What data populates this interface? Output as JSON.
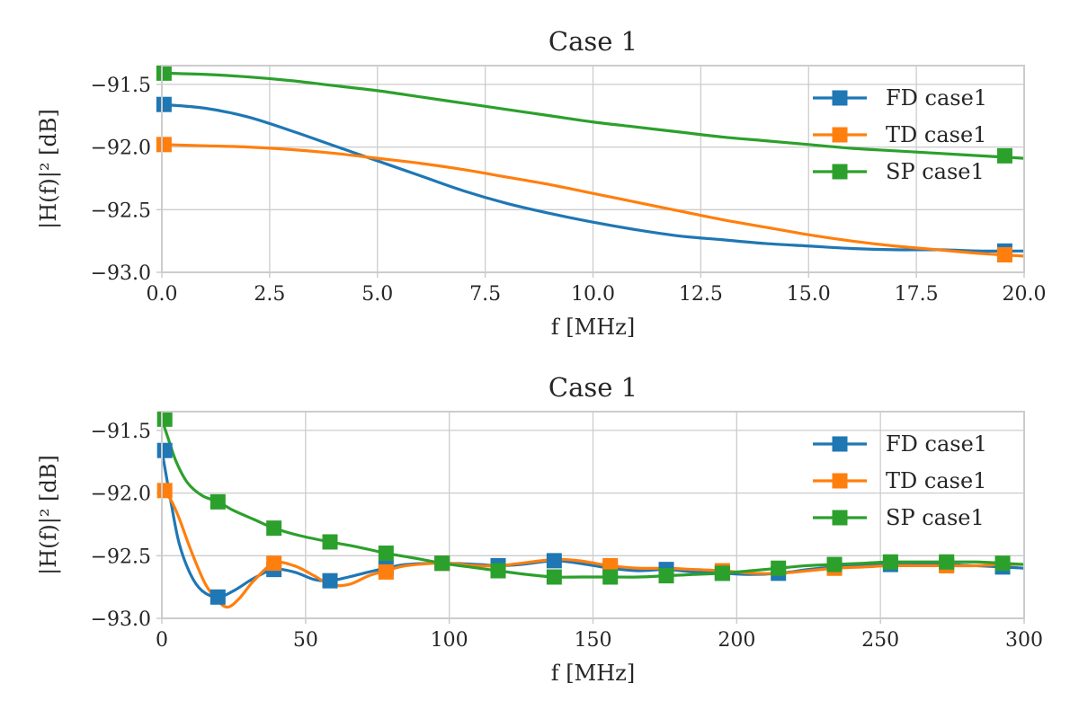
{
  "chart_data": [
    {
      "type": "line",
      "title": "Case 1",
      "xlabel": "f [MHz]",
      "ylabel": "|H(f)|² [dB]",
      "xlim": [
        0,
        20
      ],
      "ylim": [
        -93.0,
        -91.35
      ],
      "xticks": [
        "0.0",
        "2.5",
        "5.0",
        "7.5",
        "10.0",
        "12.5",
        "15.0",
        "17.5",
        "20.0"
      ],
      "xtick_values": [
        0,
        2.5,
        5,
        7.5,
        10,
        12.5,
        15,
        17.5,
        20
      ],
      "yticks": [
        "−93.0",
        "−92.5",
        "−92.0",
        "−91.5"
      ],
      "ytick_values": [
        -93.0,
        -92.5,
        -92.0,
        -91.5
      ],
      "grid": true,
      "legend_position": "top-right",
      "series": [
        {
          "name": "FD case1",
          "color": "#1f77b4",
          "x": [
            0,
            1,
            2,
            3,
            4,
            5,
            6,
            7,
            8,
            9,
            10,
            11,
            12,
            13,
            14,
            15,
            16,
            17,
            18,
            19,
            20
          ],
          "values": [
            -91.66,
            -91.69,
            -91.76,
            -91.87,
            -91.99,
            -92.11,
            -92.23,
            -92.35,
            -92.45,
            -92.53,
            -92.6,
            -92.66,
            -92.71,
            -92.74,
            -92.77,
            -92.79,
            -92.81,
            -92.82,
            -92.82,
            -92.83,
            -92.83
          ],
          "markers": [
            {
              "x": 0.05,
              "y": -91.66
            },
            {
              "x": 19.55,
              "y": -92.83
            }
          ]
        },
        {
          "name": "TD case1",
          "color": "#ff7f0e",
          "x": [
            0,
            1,
            2,
            3,
            4,
            5,
            6,
            7,
            8,
            9,
            10,
            11,
            12,
            13,
            14,
            15,
            16,
            17,
            18,
            19,
            20
          ],
          "values": [
            -91.98,
            -91.99,
            -92.0,
            -92.02,
            -92.05,
            -92.09,
            -92.13,
            -92.18,
            -92.24,
            -92.3,
            -92.37,
            -92.44,
            -92.51,
            -92.58,
            -92.64,
            -92.7,
            -92.75,
            -92.79,
            -92.82,
            -92.85,
            -92.87
          ],
          "markers": [
            {
              "x": 0.05,
              "y": -91.98
            },
            {
              "x": 19.55,
              "y": -92.86
            }
          ]
        },
        {
          "name": "SP case1",
          "color": "#2ca02c",
          "x": [
            0,
            1,
            2,
            3,
            4,
            5,
            6,
            7,
            8,
            9,
            10,
            11,
            12,
            13,
            14,
            15,
            16,
            17,
            18,
            19,
            20
          ],
          "values": [
            -91.41,
            -91.42,
            -91.44,
            -91.47,
            -91.51,
            -91.55,
            -91.6,
            -91.65,
            -91.7,
            -91.75,
            -91.8,
            -91.84,
            -91.88,
            -91.92,
            -91.95,
            -91.98,
            -92.01,
            -92.03,
            -92.05,
            -92.07,
            -92.09
          ],
          "markers": [
            {
              "x": 0.05,
              "y": -91.41
            },
            {
              "x": 19.55,
              "y": -92.07
            }
          ]
        }
      ]
    },
    {
      "type": "line",
      "title": "Case 1",
      "xlabel": "f [MHz]",
      "ylabel": "|H(f)|² [dB]",
      "xlim": [
        0,
        300
      ],
      "ylim": [
        -93.0,
        -91.35
      ],
      "xticks": [
        "0",
        "50",
        "100",
        "150",
        "200",
        "250",
        "300"
      ],
      "xtick_values": [
        0,
        50,
        100,
        150,
        200,
        250,
        300
      ],
      "yticks": [
        "−93.0",
        "−92.5",
        "−92.0",
        "−91.5"
      ],
      "ytick_values": [
        -93.0,
        -92.5,
        -92.0,
        -91.5
      ],
      "grid": true,
      "legend_position": "top-right",
      "series": [
        {
          "name": "FD case1",
          "color": "#1f77b4",
          "x": [
            0,
            3,
            6,
            10,
            14,
            19.5,
            25,
            32,
            39,
            46,
            53,
            58.5,
            65,
            72,
            78,
            85,
            97.5,
            110,
            117,
            125,
            136.5,
            145,
            156,
            166,
            175.5,
            185,
            195,
            205,
            215,
            225,
            234,
            244,
            254,
            264,
            273,
            283,
            293,
            300
          ],
          "values": [
            -91.66,
            -92.05,
            -92.4,
            -92.65,
            -92.78,
            -92.83,
            -92.78,
            -92.68,
            -92.61,
            -92.63,
            -92.69,
            -92.7,
            -92.67,
            -92.63,
            -92.6,
            -92.57,
            -92.56,
            -92.57,
            -92.58,
            -92.57,
            -92.54,
            -92.56,
            -92.6,
            -92.62,
            -92.61,
            -92.63,
            -92.64,
            -92.65,
            -92.64,
            -92.61,
            -92.59,
            -92.58,
            -92.57,
            -92.57,
            -92.57,
            -92.58,
            -92.59,
            -92.6
          ],
          "markers": [
            {
              "x": 1,
              "y": -91.66
            },
            {
              "x": 19.5,
              "y": -92.83
            },
            {
              "x": 39,
              "y": -92.61
            },
            {
              "x": 58.5,
              "y": -92.7
            },
            {
              "x": 78,
              "y": -92.6
            },
            {
              "x": 97.5,
              "y": -92.56
            },
            {
              "x": 117,
              "y": -92.58
            },
            {
              "x": 136.5,
              "y": -92.54
            },
            {
              "x": 156,
              "y": -92.6
            },
            {
              "x": 175.5,
              "y": -92.61
            },
            {
              "x": 195,
              "y": -92.64
            },
            {
              "x": 214.5,
              "y": -92.64
            },
            {
              "x": 234,
              "y": -92.59
            },
            {
              "x": 253.5,
              "y": -92.57
            },
            {
              "x": 273,
              "y": -92.57
            },
            {
              "x": 292.5,
              "y": -92.59
            }
          ]
        },
        {
          "name": "TD case1",
          "color": "#ff7f0e",
          "x": [
            0,
            3,
            6,
            10,
            15,
            19.5,
            23,
            27,
            32,
            39,
            46,
            53,
            58.5,
            65,
            72,
            78,
            85,
            97.5,
            110,
            117,
            125,
            136.5,
            145,
            156,
            166,
            175.5,
            185,
            195,
            205,
            215,
            225,
            234,
            244,
            254,
            264,
            273,
            283,
            293,
            300
          ],
          "values": [
            -91.98,
            -92.05,
            -92.2,
            -92.45,
            -92.72,
            -92.86,
            -92.91,
            -92.84,
            -92.7,
            -92.56,
            -92.58,
            -92.66,
            -92.73,
            -92.73,
            -92.66,
            -92.62,
            -92.58,
            -92.56,
            -92.58,
            -92.58,
            -92.56,
            -92.53,
            -92.54,
            -92.58,
            -92.6,
            -92.6,
            -92.61,
            -92.62,
            -92.64,
            -92.64,
            -92.62,
            -92.6,
            -92.59,
            -92.58,
            -92.58,
            -92.58,
            -92.58,
            -92.57,
            -92.57
          ],
          "markers": [
            {
              "x": 1,
              "y": -91.98
            },
            {
              "x": 39,
              "y": -92.56
            },
            {
              "x": 78,
              "y": -92.63
            },
            {
              "x": 97.5,
              "y": -92.56
            },
            {
              "x": 156,
              "y": -92.58
            },
            {
              "x": 195,
              "y": -92.62
            },
            {
              "x": 234,
              "y": -92.6
            },
            {
              "x": 273,
              "y": -92.58
            }
          ]
        },
        {
          "name": "SP case1",
          "color": "#2ca02c",
          "x": [
            0,
            2,
            5,
            9,
            14,
            19.5,
            25,
            32,
            39,
            48,
            58.5,
            68,
            78,
            88,
            97.5,
            107,
            117,
            127,
            136.5,
            146,
            156,
            166,
            175.5,
            185,
            195,
            205,
            214.5,
            224,
            234,
            244,
            253.5,
            263,
            273,
            283,
            292.5,
            300
          ],
          "values": [
            -91.41,
            -91.55,
            -91.75,
            -91.92,
            -92.02,
            -92.07,
            -92.14,
            -92.21,
            -92.28,
            -92.34,
            -92.39,
            -92.43,
            -92.48,
            -92.52,
            -92.56,
            -92.59,
            -92.62,
            -92.65,
            -92.67,
            -92.67,
            -92.67,
            -92.67,
            -92.66,
            -92.65,
            -92.64,
            -92.62,
            -92.6,
            -92.58,
            -92.57,
            -92.56,
            -92.55,
            -92.55,
            -92.55,
            -92.55,
            -92.56,
            -92.57
          ],
          "markers": [
            {
              "x": 1,
              "y": -91.41
            },
            {
              "x": 19.5,
              "y": -92.07
            },
            {
              "x": 39,
              "y": -92.28
            },
            {
              "x": 58.5,
              "y": -92.39
            },
            {
              "x": 78,
              "y": -92.48
            },
            {
              "x": 97.5,
              "y": -92.56
            },
            {
              "x": 117,
              "y": -92.62
            },
            {
              "x": 136.5,
              "y": -92.67
            },
            {
              "x": 156,
              "y": -92.67
            },
            {
              "x": 175.5,
              "y": -92.66
            },
            {
              "x": 195,
              "y": -92.64
            },
            {
              "x": 214.5,
              "y": -92.6
            },
            {
              "x": 234,
              "y": -92.57
            },
            {
              "x": 253.5,
              "y": -92.55
            },
            {
              "x": 273,
              "y": -92.55
            },
            {
              "x": 292.5,
              "y": -92.56
            }
          ]
        }
      ]
    }
  ]
}
